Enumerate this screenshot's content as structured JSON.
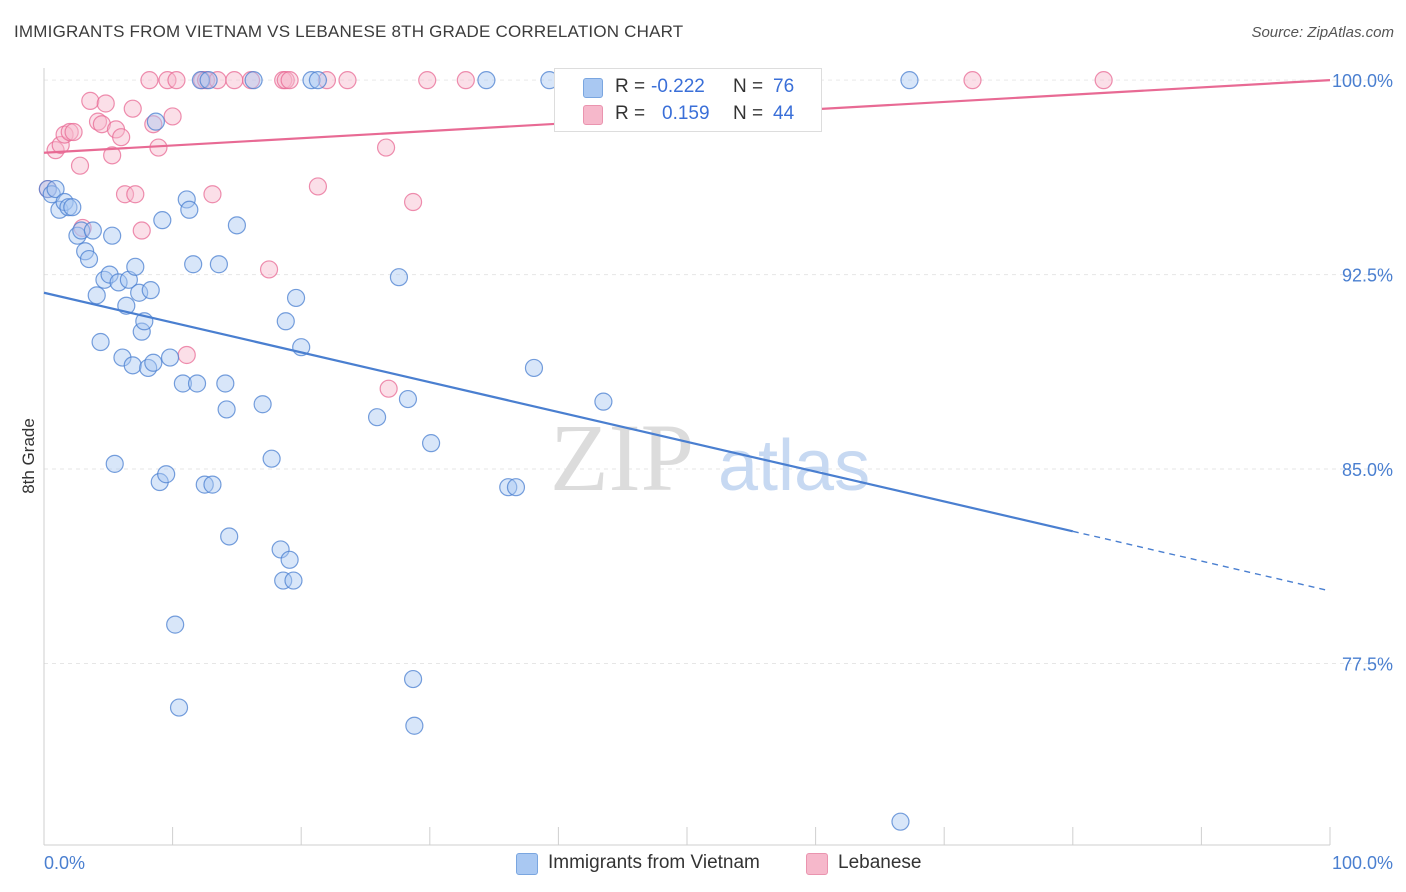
{
  "header": {
    "title": "IMMIGRANTS FROM VIETNAM VS LEBANESE 8TH GRADE CORRELATION CHART",
    "source": "Source: ZipAtlas.com"
  },
  "watermark": {
    "zip": "ZIP",
    "atlas": "atlas"
  },
  "legend": {
    "r_label": "R =",
    "n_label": "N =",
    "rows": [
      {
        "r": "-0.222",
        "n": "76",
        "color": "#a9c8f2"
      },
      {
        "r": "0.159",
        "n": "44",
        "color": "#f6b8cb"
      }
    ]
  },
  "bottom_legend": [
    {
      "label": "Immigrants from Vietnam",
      "color": "#a9c8f2"
    },
    {
      "label": "Lebanese",
      "color": "#f6b8cb"
    }
  ],
  "chart_data": {
    "type": "scatter",
    "title": "IMMIGRANTS FROM VIETNAM VS LEBANESE 8TH GRADE CORRELATION CHART",
    "xlabel": "",
    "ylabel": "8th Grade",
    "xlim": [
      0,
      100
    ],
    "ylim": [
      70.5,
      100.7
    ],
    "x_tick_labels": [
      "0.0%",
      "100.0%"
    ],
    "y_ticks": [
      {
        "value": 77.5,
        "label": "77.5%"
      },
      {
        "value": 85.0,
        "label": "85.0%"
      },
      {
        "value": 92.5,
        "label": "92.5%"
      },
      {
        "value": 100.0,
        "label": "100.0%"
      }
    ],
    "grid": true,
    "legend_position": "top-center",
    "colors": {
      "vietnam": "#4a7fd0",
      "vietnam_fill": "#a9c8f2",
      "lebanese": "#e86a94",
      "lebanese_fill": "#f6b8cb"
    },
    "series": [
      {
        "name": "Immigrants from Vietnam",
        "r": -0.222,
        "n": 76,
        "trend": {
          "x0": 0,
          "y0": 91.8,
          "x1": 100,
          "y1": 80.3,
          "solid_until": 80
        },
        "points": [
          [
            0.3,
            95.8
          ],
          [
            0.6,
            95.6
          ],
          [
            0.9,
            95.8
          ],
          [
            1.2,
            95.0
          ],
          [
            1.6,
            95.3
          ],
          [
            1.9,
            95.1
          ],
          [
            2.2,
            95.1
          ],
          [
            2.6,
            94.0
          ],
          [
            2.9,
            94.2
          ],
          [
            3.2,
            93.4
          ],
          [
            3.5,
            93.1
          ],
          [
            3.8,
            94.2
          ],
          [
            4.1,
            91.7
          ],
          [
            4.4,
            89.9
          ],
          [
            4.7,
            92.3
          ],
          [
            5.1,
            92.5
          ],
          [
            5.3,
            94.0
          ],
          [
            5.5,
            85.2
          ],
          [
            5.8,
            92.2
          ],
          [
            6.1,
            89.3
          ],
          [
            6.4,
            91.3
          ],
          [
            6.6,
            92.3
          ],
          [
            6.9,
            89.0
          ],
          [
            7.1,
            92.8
          ],
          [
            7.4,
            91.8
          ],
          [
            7.6,
            90.3
          ],
          [
            7.8,
            90.7
          ],
          [
            8.1,
            88.9
          ],
          [
            8.3,
            91.9
          ],
          [
            8.5,
            89.1
          ],
          [
            8.7,
            98.4
          ],
          [
            9.0,
            84.5
          ],
          [
            9.2,
            94.6
          ],
          [
            9.5,
            84.8
          ],
          [
            9.8,
            89.3
          ],
          [
            10.2,
            79.0
          ],
          [
            10.5,
            75.8
          ],
          [
            10.8,
            88.3
          ],
          [
            11.1,
            95.4
          ],
          [
            11.3,
            95.0
          ],
          [
            11.6,
            92.9
          ],
          [
            11.9,
            88.3
          ],
          [
            12.2,
            100.0
          ],
          [
            12.5,
            84.4
          ],
          [
            12.8,
            100.0
          ],
          [
            13.1,
            84.4
          ],
          [
            13.6,
            92.9
          ],
          [
            14.1,
            88.3
          ],
          [
            14.2,
            87.3
          ],
          [
            14.4,
            82.4
          ],
          [
            15.0,
            94.4
          ],
          [
            16.3,
            100.0
          ],
          [
            17.0,
            87.5
          ],
          [
            17.7,
            85.4
          ],
          [
            18.4,
            81.9
          ],
          [
            18.6,
            80.7
          ],
          [
            18.8,
            90.7
          ],
          [
            19.1,
            81.5
          ],
          [
            19.4,
            80.7
          ],
          [
            19.6,
            91.6
          ],
          [
            20.0,
            89.7
          ],
          [
            20.8,
            100.0
          ],
          [
            21.3,
            100.0
          ],
          [
            25.9,
            87.0
          ],
          [
            27.6,
            92.4
          ],
          [
            28.3,
            87.7
          ],
          [
            28.7,
            76.9
          ],
          [
            28.8,
            75.1
          ],
          [
            30.1,
            86.0
          ],
          [
            34.4,
            100.0
          ],
          [
            36.1,
            84.3
          ],
          [
            36.7,
            84.3
          ],
          [
            38.1,
            88.9
          ],
          [
            39.3,
            100.0
          ],
          [
            43.5,
            87.6
          ],
          [
            52.0,
            100.0
          ],
          [
            52.9,
            100.0
          ],
          [
            66.6,
            71.4
          ],
          [
            67.3,
            100.0
          ]
        ]
      },
      {
        "name": "Lebanese",
        "r": 0.159,
        "n": 44,
        "trend": {
          "x0": 0,
          "y0": 97.2,
          "x1": 100,
          "y1": 100.0,
          "solid_until": 100
        },
        "points": [
          [
            0.3,
            95.8
          ],
          [
            0.9,
            97.3
          ],
          [
            1.3,
            97.5
          ],
          [
            1.6,
            97.9
          ],
          [
            2.0,
            98.0
          ],
          [
            2.3,
            98.0
          ],
          [
            2.8,
            96.7
          ],
          [
            3.0,
            94.3
          ],
          [
            3.6,
            99.2
          ],
          [
            4.2,
            98.4
          ],
          [
            4.5,
            98.3
          ],
          [
            4.8,
            99.1
          ],
          [
            5.3,
            97.1
          ],
          [
            5.6,
            98.1
          ],
          [
            6.0,
            97.8
          ],
          [
            6.3,
            95.6
          ],
          [
            6.9,
            98.9
          ],
          [
            7.1,
            95.6
          ],
          [
            7.6,
            94.2
          ],
          [
            8.2,
            100.0
          ],
          [
            8.5,
            98.3
          ],
          [
            8.9,
            97.4
          ],
          [
            9.6,
            100.0
          ],
          [
            10.0,
            98.6
          ],
          [
            10.3,
            100.0
          ],
          [
            11.1,
            89.4
          ],
          [
            12.3,
            100.0
          ],
          [
            12.6,
            100.0
          ],
          [
            13.1,
            95.6
          ],
          [
            13.5,
            100.0
          ],
          [
            14.8,
            100.0
          ],
          [
            16.1,
            100.0
          ],
          [
            17.5,
            92.7
          ],
          [
            18.6,
            100.0
          ],
          [
            18.8,
            100.0
          ],
          [
            19.1,
            100.0
          ],
          [
            21.3,
            95.9
          ],
          [
            22.0,
            100.0
          ],
          [
            23.6,
            100.0
          ],
          [
            26.6,
            97.4
          ],
          [
            26.8,
            88.1
          ],
          [
            28.7,
            95.3
          ],
          [
            29.8,
            100.0
          ],
          [
            32.8,
            100.0
          ],
          [
            72.2,
            100.0
          ],
          [
            82.4,
            100.0
          ]
        ]
      }
    ]
  }
}
